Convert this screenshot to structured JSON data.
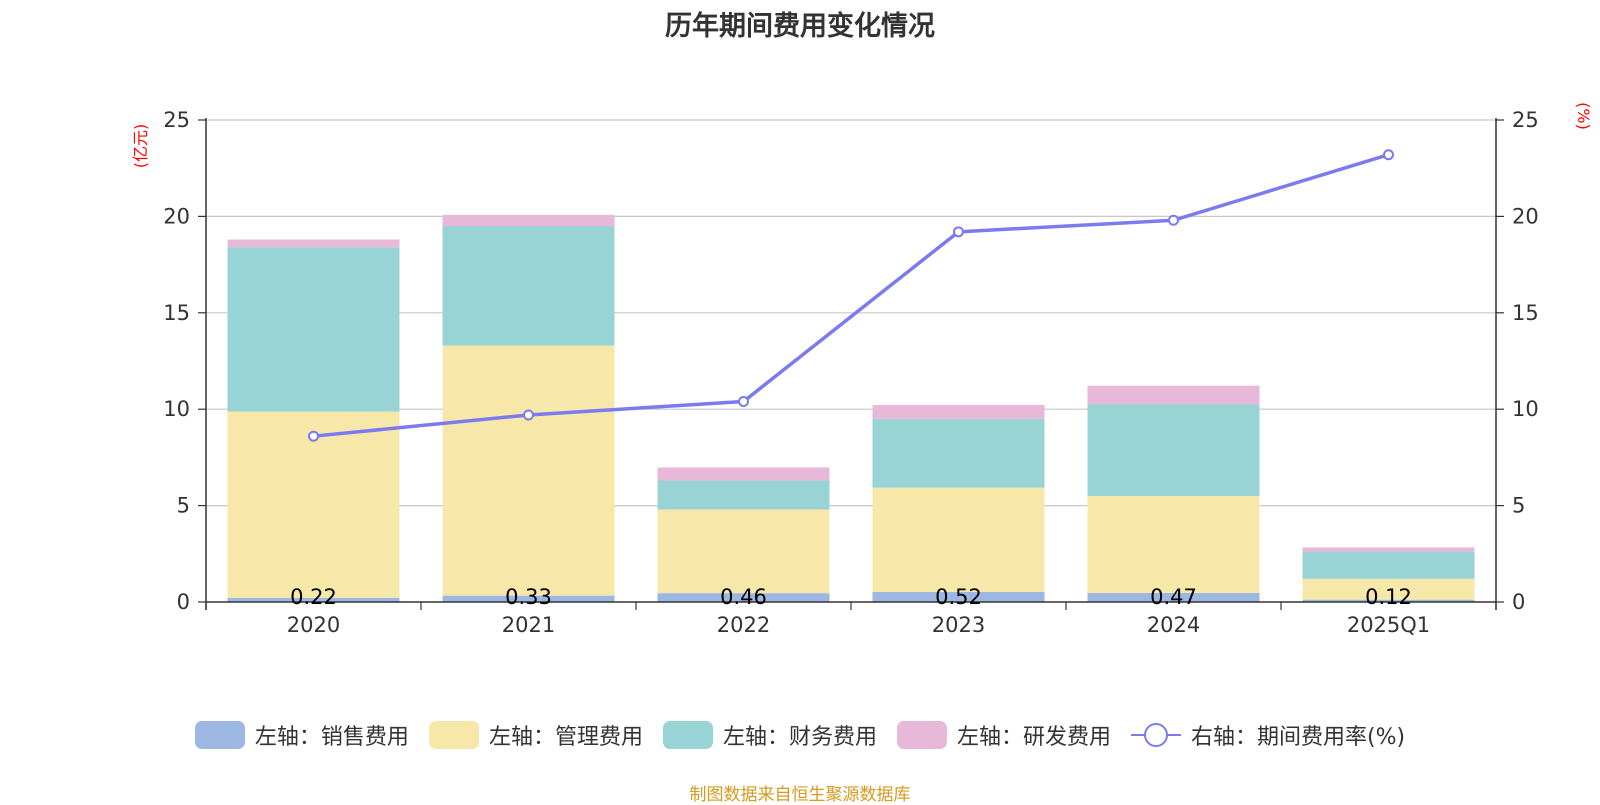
{
  "chart_data": {
    "type": "bar",
    "title": "历年期间费用变化情况",
    "categories": [
      "2020",
      "2021",
      "2022",
      "2023",
      "2024",
      "2025Q1"
    ],
    "left_axis": {
      "label": "(亿元)",
      "ylim": [
        0,
        25
      ],
      "ticks": [
        "0",
        "5",
        "10",
        "15",
        "20",
        "25"
      ]
    },
    "right_axis": {
      "label": "(%)",
      "ylim": [
        0,
        25
      ],
      "ticks": [
        "0",
        "5",
        "10",
        "15",
        "20",
        "25"
      ]
    },
    "series": [
      {
        "name": "左轴：销售费用",
        "values": [
          0.22,
          0.33,
          0.46,
          0.52,
          0.47,
          0.12
        ],
        "color": "#9db7e3",
        "labels": [
          "0.22",
          "0.33",
          "0.46",
          "0.52",
          "0.47",
          "0.12"
        ]
      },
      {
        "name": "左轴：管理费用",
        "values": [
          9.66,
          12.97,
          4.34,
          5.41,
          5.03,
          1.08
        ],
        "color": "#f7e7a9"
      },
      {
        "name": "左轴：财务费用",
        "values": [
          8.52,
          6.2,
          1.5,
          3.57,
          4.76,
          1.41
        ],
        "color": "#98d4d5"
      },
      {
        "name": "左轴：研发费用",
        "values": [
          0.4,
          0.58,
          0.68,
          0.72,
          0.96,
          0.22
        ],
        "color": "#e8b8d9"
      }
    ],
    "line": {
      "name": "右轴：期间费用率(%)",
      "values": [
        8.6,
        9.7,
        10.4,
        19.2,
        19.8,
        23.2
      ],
      "color": "#7b7bef"
    },
    "grid": true,
    "legend_position": "bottom"
  },
  "source_text": "制图数据来自恒生聚源数据库",
  "source_color": "#d89a1c"
}
